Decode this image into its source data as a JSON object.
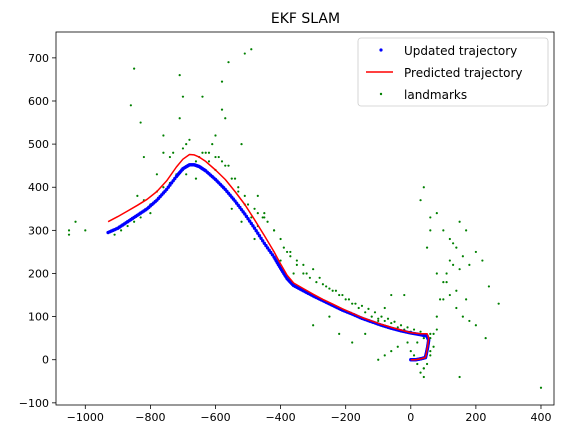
{
  "chart_data": {
    "type": "scatter",
    "title": "EKF SLAM",
    "xlabel": "",
    "ylabel": "",
    "xlim": [
      -1090,
      440
    ],
    "ylim": [
      -105,
      760
    ],
    "x_ticks": [
      -1000,
      -800,
      -600,
      -400,
      -200,
      0,
      200,
      400
    ],
    "y_ticks": [
      -100,
      0,
      100,
      200,
      300,
      400,
      500,
      600,
      700
    ],
    "x_tick_labels": [
      "−1000",
      "−800",
      "−600",
      "−400",
      "−200",
      "0",
      "200",
      "400"
    ],
    "y_tick_labels": [
      "−100",
      "0",
      "100",
      "200",
      "300",
      "400",
      "500",
      "600",
      "700"
    ],
    "grid": false,
    "legend_position": "top-right",
    "series": [
      {
        "name": "Updated trajectory",
        "kind": "scatter",
        "color": "#0000ff",
        "x": [
          -930,
          -900,
          -870,
          -840,
          -810,
          -780,
          -750,
          -720,
          -700,
          -680,
          -665,
          -650,
          -630,
          -600,
          -570,
          -540,
          -510,
          -480,
          -450,
          -420,
          -400,
          -380,
          -360,
          -330,
          -300,
          -270,
          -240,
          -210,
          -180,
          -150,
          -120,
          -90,
          -60,
          -30,
          0,
          30,
          50,
          55,
          52,
          48,
          45,
          30,
          15,
          0
        ],
        "y": [
          295,
          305,
          320,
          335,
          350,
          370,
          395,
          425,
          443,
          452,
          452,
          448,
          438,
          418,
          395,
          368,
          338,
          305,
          270,
          238,
          212,
          188,
          172,
          160,
          148,
          137,
          126,
          115,
          106,
          96,
          88,
          80,
          73,
          67,
          62,
          58,
          55,
          45,
          30,
          15,
          5,
          2,
          0,
          0
        ]
      },
      {
        "name": "Predicted trajectory",
        "kind": "line",
        "color": "#ff0000",
        "x": [
          -930,
          -900,
          -870,
          -840,
          -810,
          -780,
          -750,
          -720,
          -700,
          -680,
          -665,
          -650,
          -630,
          -600,
          -570,
          -540,
          -510,
          -480,
          -450,
          -420,
          -400,
          -380,
          -360,
          -330,
          -300,
          -270,
          -240,
          -210,
          -180,
          -150,
          -120,
          -90,
          -60,
          -30,
          0,
          30,
          50,
          55,
          52,
          48,
          45,
          30,
          15,
          0
        ],
        "y": [
          320,
          332,
          345,
          358,
          372,
          390,
          415,
          447,
          465,
          476,
          475,
          470,
          460,
          440,
          418,
          390,
          360,
          325,
          288,
          250,
          222,
          196,
          178,
          165,
          152,
          140,
          129,
          118,
          108,
          98,
          90,
          82,
          75,
          69,
          63,
          60,
          60,
          50,
          32,
          15,
          5,
          2,
          0,
          0
        ]
      },
      {
        "name": "landmarks",
        "kind": "scatter",
        "color": "#008000",
        "x": [
          -1050,
          -1050,
          -1000,
          -1030,
          -850,
          -860,
          -830,
          -820,
          -760,
          -710,
          -700,
          -710,
          -760,
          -780,
          -740,
          -660,
          -640,
          -600,
          -560,
          -580,
          -510,
          -490,
          -580,
          -570,
          -520,
          -470,
          -450,
          -600,
          -620,
          -640,
          -730,
          -700,
          -690,
          -680,
          -620,
          -600,
          -580,
          -560,
          -540,
          -530,
          -510,
          -500,
          -480,
          -470,
          -455,
          -440,
          -420,
          -400,
          -390,
          -370,
          -350,
          -330,
          -310,
          -290,
          -270,
          -250,
          -230,
          -210,
          -190,
          -170,
          -150,
          -130,
          -110,
          -90,
          -70,
          -50,
          -30,
          -10,
          10,
          30,
          -800,
          -820,
          -840,
          -780,
          -760,
          -740,
          -720,
          -700,
          -660,
          -650,
          -630,
          -690,
          -610,
          -590,
          -570,
          -550,
          -530,
          -510,
          -490,
          -470,
          -800,
          -830,
          -850,
          -870,
          -890,
          -910,
          -350,
          -370,
          -330,
          -300,
          -320,
          -280,
          -260,
          -240,
          -220,
          -200,
          -180,
          -160,
          -140,
          -120,
          -100,
          -80,
          -60,
          -40,
          -20,
          0,
          20,
          40,
          60,
          -250,
          -300,
          -220,
          -180,
          -140,
          -100,
          -80,
          -60,
          60,
          80,
          100,
          120,
          140,
          160,
          180,
          200,
          220,
          240,
          100,
          120,
          140,
          160,
          180,
          200,
          80,
          60,
          40,
          20,
          -40,
          -60,
          -80,
          -100,
          20,
          40,
          60,
          70,
          80,
          90,
          100,
          110,
          120,
          130,
          150,
          170,
          130,
          150,
          70,
          60,
          50,
          40,
          30,
          20,
          10,
          0,
          -20,
          30,
          40,
          50,
          60,
          80,
          110,
          140,
          170,
          -450,
          -420,
          -480,
          -520,
          -550,
          -380,
          -360,
          -400,
          400,
          270,
          230,
          -10,
          40,
          150,
          -130
        ],
        "y": [
          300,
          290,
          300,
          320,
          675,
          590,
          550,
          470,
          520,
          560,
          610,
          660,
          480,
          430,
          470,
          420,
          610,
          520,
          690,
          645,
          710,
          720,
          580,
          560,
          500,
          380,
          340,
          440,
          460,
          480,
          480,
          490,
          500,
          510,
          480,
          470,
          460,
          450,
          420,
          400,
          380,
          360,
          350,
          340,
          330,
          320,
          300,
          280,
          260,
          240,
          220,
          200,
          190,
          180,
          175,
          165,
          160,
          150,
          140,
          130,
          125,
          118,
          110,
          100,
          95,
          88,
          80,
          75,
          70,
          65,
          360,
          370,
          380,
          390,
          400,
          410,
          430,
          440,
          460,
          470,
          480,
          430,
          500,
          470,
          450,
          420,
          390,
          360,
          330,
          310,
          340,
          330,
          320,
          310,
          300,
          290,
          230,
          250,
          220,
          210,
          200,
          190,
          170,
          160,
          150,
          140,
          130,
          120,
          110,
          100,
          95,
          90,
          85,
          75,
          70,
          65,
          60,
          55,
          50,
          100,
          80,
          60,
          40,
          60,
          90,
          120,
          150,
          330,
          340,
          300,
          280,
          260,
          240,
          220,
          250,
          230,
          170,
          140,
          150,
          120,
          100,
          90,
          80,
          70,
          60,
          50,
          40,
          30,
          20,
          10,
          0,
          -10,
          -20,
          20,
          60,
          100,
          140,
          180,
          200,
          230,
          270,
          320,
          300,
          220,
          210,
          30,
          10,
          -10,
          -20,
          -30,
          0,
          10,
          20,
          150,
          370,
          400,
          260,
          300,
          200,
          180,
          160,
          140,
          330,
          300,
          280,
          320,
          350,
          250,
          200,
          230,
          -65,
          130,
          50,
          40,
          -40,
          -40,
          90
        ]
      }
    ]
  }
}
